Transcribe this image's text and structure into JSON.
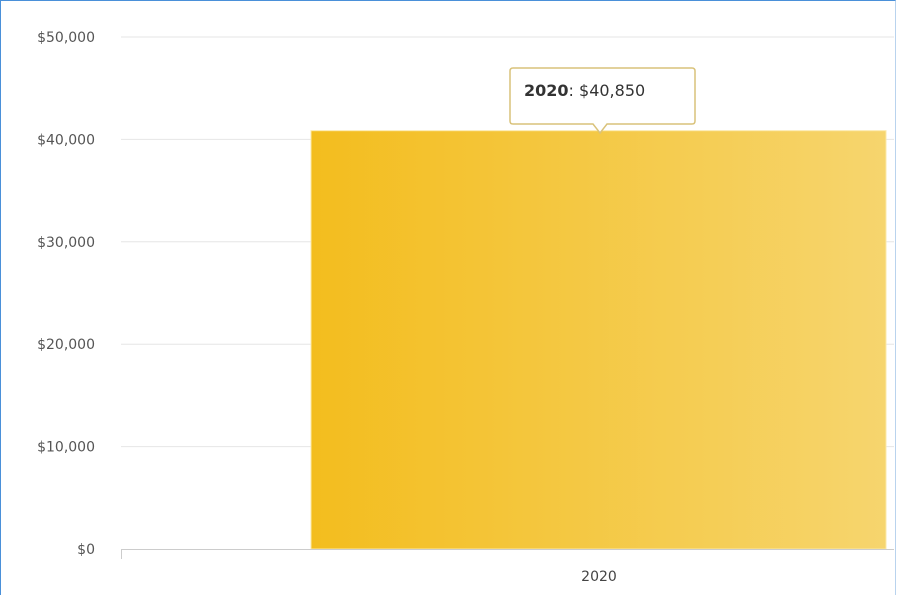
{
  "chart_data": {
    "type": "bar",
    "categories": [
      "2020"
    ],
    "series": [
      {
        "values": [
          40850
        ]
      }
    ],
    "ylim": [
      0,
      50000
    ],
    "yticks": [
      0,
      10000,
      20000,
      30000,
      40000,
      50000
    ],
    "ytick_labels": [
      "$0",
      "$10,000",
      "$20,000",
      "$30,000",
      "$40,000",
      "$50,000"
    ],
    "grid": true,
    "legend": "none",
    "colors": {
      "bar_start": "#f3bd1e",
      "bar_end": "#f6d56e",
      "grid": "#e6e6e6",
      "axis": "#cccccc",
      "tooltip_border": "#d9c27a"
    },
    "tooltip": {
      "category": "2020",
      "separator": ": ",
      "value_label": "$40,850"
    }
  }
}
